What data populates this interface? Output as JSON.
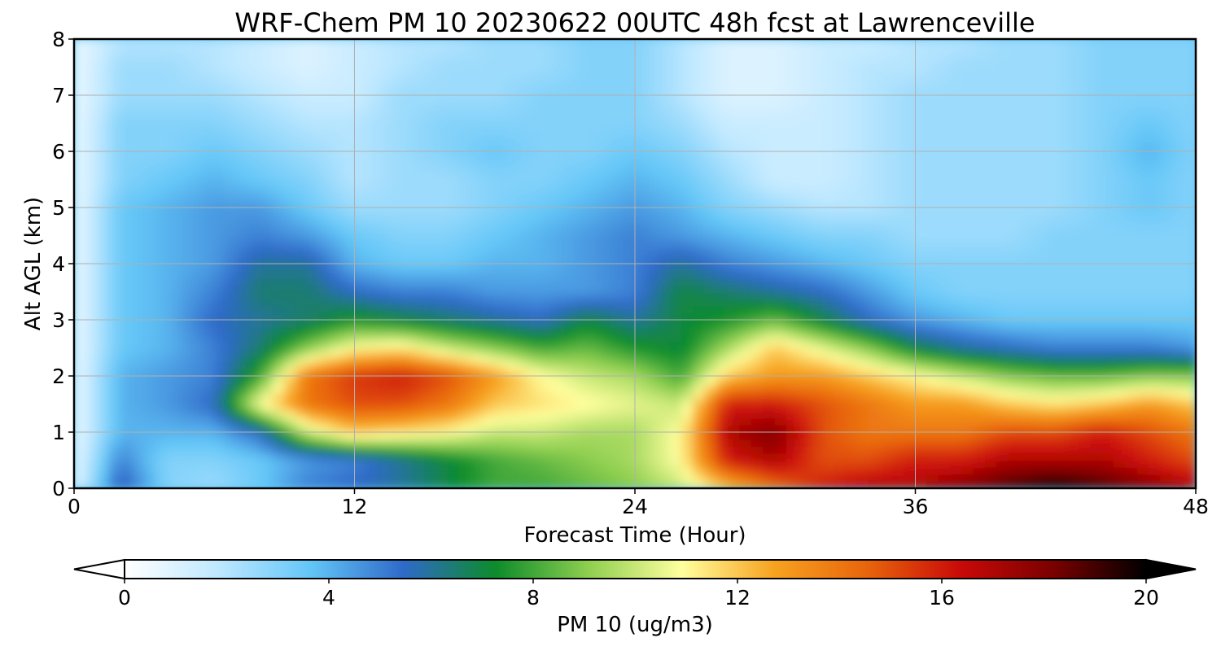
{
  "chart_data": {
    "type": "heatmap",
    "title": "WRF-Chem PM 10  20230622 00UTC 48h fcst at Lawrenceville",
    "xlabel": "Forecast Time (Hour)",
    "ylabel": "Alt AGL (km)",
    "xlim": [
      0,
      48
    ],
    "ylim": [
      0,
      8
    ],
    "xticks": [
      "0",
      "12",
      "24",
      "36",
      "48"
    ],
    "yticks": [
      "0",
      "1",
      "2",
      "3",
      "4",
      "5",
      "6",
      "7",
      "8"
    ],
    "grid": true,
    "colorbar": {
      "label": "PM 10  (ug/m3)",
      "range": [
        0,
        20
      ],
      "ticks": [
        "0",
        "4",
        "8",
        "12",
        "16",
        "20"
      ],
      "extend": "both",
      "colors": [
        "#ffffff",
        "#bfe8ff",
        "#63c6f7",
        "#2f6ac9",
        "#0d8c2a",
        "#8fcf50",
        "#ffff9e",
        "#f7a21f",
        "#e8640c",
        "#c90a08",
        "#7a0000",
        "#000000"
      ]
    },
    "x": [
      0,
      2,
      4,
      6,
      8,
      10,
      12,
      14,
      16,
      18,
      20,
      22,
      24,
      26,
      28,
      30,
      32,
      34,
      36,
      38,
      40,
      42,
      44,
      46,
      48
    ],
    "y": [
      0,
      0.5,
      1,
      1.5,
      2,
      2.5,
      3,
      3.5,
      4,
      4.5,
      5,
      5.5,
      6,
      6.5,
      7,
      7.5,
      8
    ],
    "z": [
      [
        0.5,
        6,
        3,
        2.5,
        3.5,
        5,
        5.5,
        6,
        7,
        8,
        8,
        8.5,
        9,
        10,
        12,
        14,
        16,
        17,
        17,
        18,
        19,
        20,
        19,
        18,
        17
      ],
      [
        0.5,
        5,
        3,
        3,
        3.5,
        4.5,
        5,
        6,
        7,
        8,
        8.5,
        9,
        9.5,
        11,
        16,
        17,
        15,
        15,
        16,
        16,
        17,
        17,
        17,
        16,
        15
      ],
      [
        0.5,
        4,
        4,
        4,
        5.5,
        10,
        12,
        11.5,
        11,
        10,
        10,
        9.5,
        9.5,
        11,
        17,
        18,
        15,
        14,
        14,
        14,
        15,
        15,
        16,
        15,
        14
      ],
      [
        0.5,
        4,
        4.5,
        5.5,
        11,
        14,
        15,
        15,
        14,
        12,
        11.5,
        11,
        10.5,
        10,
        16,
        16,
        15,
        14,
        13,
        13,
        12,
        11.5,
        12,
        13,
        12
      ],
      [
        0.5,
        4,
        4.5,
        5,
        8,
        14,
        15.5,
        16,
        15,
        13,
        11,
        10,
        9.5,
        8,
        12,
        13,
        13,
        12,
        11,
        10,
        9,
        8.5,
        8.5,
        9,
        9
      ],
      [
        0.5,
        3.5,
        4,
        5,
        6.5,
        9,
        11,
        11.5,
        10,
        9,
        8,
        8.5,
        7.5,
        7,
        9.5,
        12,
        10.5,
        9,
        7,
        6,
        5.5,
        5,
        5,
        5,
        4.5
      ],
      [
        0.5,
        3.5,
        4,
        5.5,
        6,
        6.5,
        7.5,
        7,
        6.5,
        6,
        5.5,
        7,
        6,
        7,
        7.5,
        8.5,
        7,
        5.5,
        4.5,
        4,
        3.5,
        3.5,
        3.5,
        3.5,
        3.5
      ],
      [
        0.5,
        3.5,
        4,
        5,
        6.5,
        6.5,
        5.5,
        5,
        5,
        4.5,
        4.5,
        4.5,
        5,
        7,
        6.5,
        6,
        5.5,
        4.5,
        3.5,
        3,
        3,
        3,
        3,
        3,
        3
      ],
      [
        0.5,
        3.5,
        4,
        4.5,
        6,
        6,
        4,
        3.5,
        3.5,
        4,
        4,
        4.5,
        5,
        6,
        5,
        4.5,
        4,
        3.5,
        3,
        3,
        3,
        3,
        3,
        3,
        3
      ],
      [
        0.5,
        3.5,
        4,
        4.5,
        5,
        4.5,
        3.5,
        3,
        3,
        3.5,
        4,
        4.5,
        5,
        4.5,
        4,
        3.5,
        3,
        3,
        2.5,
        2.5,
        2.5,
        3,
        3,
        3,
        3
      ],
      [
        0.5,
        3.5,
        4,
        4.5,
        4.5,
        3.5,
        2.5,
        2.5,
        2.5,
        3,
        3.5,
        4,
        4.5,
        4,
        3,
        2.5,
        2,
        2,
        2.5,
        2.5,
        2.5,
        2.5,
        3,
        3.5,
        3
      ],
      [
        0.5,
        3,
        3.5,
        4,
        3.5,
        3,
        2,
        2.5,
        2.5,
        3,
        3,
        3.5,
        4,
        3.5,
        2.5,
        1.5,
        1.5,
        2,
        2.5,
        2.5,
        2.5,
        2.5,
        3,
        3.5,
        3
      ],
      [
        0.5,
        3,
        3,
        3.5,
        3,
        2.5,
        2,
        2.5,
        3,
        3.5,
        3,
        3,
        3.5,
        3,
        2,
        1.5,
        1.5,
        2,
        2.5,
        2.5,
        2.5,
        2.5,
        3,
        4,
        3
      ],
      [
        0.5,
        3,
        3,
        3,
        2.5,
        2,
        2,
        2.5,
        3,
        3,
        3,
        3,
        3,
        2.5,
        1.5,
        1.5,
        1.5,
        2,
        2.5,
        2.5,
        2.5,
        2.5,
        3,
        3.5,
        3
      ],
      [
        0.5,
        2.5,
        2.5,
        2.5,
        2,
        1.5,
        1.5,
        2.5,
        2.5,
        2.5,
        3,
        3,
        3,
        2,
        1,
        1,
        1.5,
        2,
        2.5,
        2.5,
        2.5,
        2.5,
        3,
        3,
        3
      ],
      [
        0.5,
        2.5,
        2.5,
        2,
        1.5,
        1,
        1.5,
        2,
        2.5,
        2.5,
        2.5,
        3,
        3,
        2,
        1,
        1,
        1.5,
        2,
        2,
        2.5,
        2.5,
        2.5,
        3,
        3,
        3
      ],
      [
        0.5,
        2,
        2,
        2,
        1.5,
        1,
        1.5,
        2,
        2,
        2.5,
        2.5,
        3,
        3,
        2,
        1,
        1,
        1.5,
        1.5,
        2,
        2,
        2.5,
        2.5,
        3,
        3,
        3
      ]
    ]
  }
}
